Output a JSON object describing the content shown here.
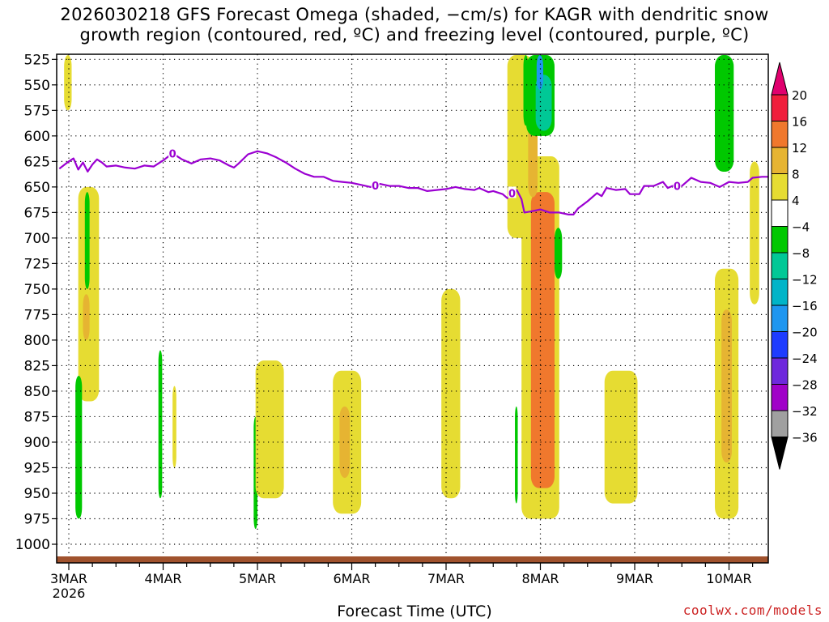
{
  "title": {
    "line1": "2026030218 GFS Forecast Omega (shaded, −cm/s) for KAGR with dendritic snow",
    "line2": "growth region (contoured, red, ºC) and freezing level (contoured, purple, ºC)"
  },
  "credit": "coolwx.com/models",
  "chart_data": {
    "type": "heatmap",
    "xlabel": "Forecast Time (UTC)",
    "ylabel": "",
    "x_ticks": [
      "3MAR",
      "4MAR",
      "5MAR",
      "6MAR",
      "7MAR",
      "8MAR",
      "9MAR",
      "10MAR"
    ],
    "x_year_label": "2026",
    "xlim_days": [
      -0.1,
      7.45
    ],
    "y_ticks": [
      525,
      550,
      575,
      600,
      625,
      650,
      675,
      700,
      725,
      750,
      775,
      800,
      825,
      850,
      875,
      900,
      925,
      950,
      975,
      1000
    ],
    "ylim": [
      1020,
      520
    ],
    "grid": true,
    "colorbar": {
      "labels": [
        "20",
        "16",
        "12",
        "8",
        "4",
        "−4",
        "−8",
        "−12",
        "−16",
        "−20",
        "−24",
        "−28",
        "−32",
        "−36"
      ],
      "colors": [
        "#f01e3c",
        "#f0782d",
        "#e6b432",
        "#e6dc32",
        "#ffffff",
        "#00c800",
        "#00c896",
        "#00b4c8",
        "#1e96f0",
        "#1e3cff",
        "#6e28dc",
        "#a000c8",
        "#a0a0a0"
      ],
      "top_arrow_color": "#e0006e",
      "bottom_arrow_color": "#000000"
    },
    "freezing_level": {
      "label": "0",
      "color": "#9b00d2",
      "label_days": [
        1.1,
        3.25,
        4.7,
        6.45
      ],
      "points": [
        [
          -0.1,
          632
        ],
        [
          0.0,
          625
        ],
        [
          0.05,
          622
        ],
        [
          0.1,
          633
        ],
        [
          0.15,
          626
        ],
        [
          0.2,
          635
        ],
        [
          0.25,
          628
        ],
        [
          0.3,
          623
        ],
        [
          0.35,
          626
        ],
        [
          0.4,
          630
        ],
        [
          0.5,
          629
        ],
        [
          0.6,
          631
        ],
        [
          0.7,
          632
        ],
        [
          0.8,
          629
        ],
        [
          0.9,
          630
        ],
        [
          1.0,
          624
        ],
        [
          1.1,
          617
        ],
        [
          1.2,
          623
        ],
        [
          1.3,
          627
        ],
        [
          1.4,
          623
        ],
        [
          1.5,
          622
        ],
        [
          1.6,
          624
        ],
        [
          1.7,
          629
        ],
        [
          1.75,
          631
        ],
        [
          1.8,
          627
        ],
        [
          1.9,
          618
        ],
        [
          2.0,
          615
        ],
        [
          2.1,
          617
        ],
        [
          2.2,
          621
        ],
        [
          2.3,
          626
        ],
        [
          2.4,
          632
        ],
        [
          2.5,
          637
        ],
        [
          2.6,
          640
        ],
        [
          2.7,
          640
        ],
        [
          2.8,
          644
        ],
        [
          2.9,
          645
        ],
        [
          3.0,
          646
        ],
        [
          3.1,
          648
        ],
        [
          3.2,
          650
        ],
        [
          3.3,
          647
        ],
        [
          3.4,
          649
        ],
        [
          3.5,
          649
        ],
        [
          3.6,
          651
        ],
        [
          3.7,
          651
        ],
        [
          3.8,
          654
        ],
        [
          3.9,
          653
        ],
        [
          4.0,
          652
        ],
        [
          4.1,
          650
        ],
        [
          4.2,
          652
        ],
        [
          4.3,
          653
        ],
        [
          4.35,
          651
        ],
        [
          4.45,
          655
        ],
        [
          4.5,
          654
        ],
        [
          4.6,
          657
        ],
        [
          4.65,
          661
        ],
        [
          4.7,
          656
        ],
        [
          4.75,
          653
        ],
        [
          4.8,
          662
        ],
        [
          4.83,
          675
        ],
        [
          4.9,
          674
        ],
        [
          5.0,
          672
        ],
        [
          5.1,
          675
        ],
        [
          5.2,
          675
        ],
        [
          5.3,
          677
        ],
        [
          5.35,
          677
        ],
        [
          5.4,
          671
        ],
        [
          5.5,
          664
        ],
        [
          5.6,
          656
        ],
        [
          5.65,
          659
        ],
        [
          5.7,
          651
        ],
        [
          5.8,
          653
        ],
        [
          5.9,
          652
        ],
        [
          5.95,
          657
        ],
        [
          6.05,
          657
        ],
        [
          6.1,
          649
        ],
        [
          6.2,
          649
        ],
        [
          6.3,
          645
        ],
        [
          6.35,
          651
        ],
        [
          6.4,
          649
        ],
        [
          6.5,
          649
        ],
        [
          6.6,
          641
        ],
        [
          6.7,
          645
        ],
        [
          6.8,
          646
        ],
        [
          6.9,
          650
        ],
        [
          7.0,
          645
        ],
        [
          7.1,
          646
        ],
        [
          7.2,
          645
        ],
        [
          7.25,
          641
        ],
        [
          7.35,
          640
        ],
        [
          7.45,
          640
        ]
      ]
    },
    "omega_regions": [
      {
        "color": "#e6dc32",
        "days": [
          0.1,
          0.32
        ],
        "p": [
          650,
          860
        ]
      },
      {
        "color": "#e6b432",
        "days": [
          0.15,
          0.22
        ],
        "p": [
          755,
          800
        ]
      },
      {
        "color": "#00c800",
        "days": [
          0.07,
          0.14
        ],
        "p": [
          835,
          975
        ]
      },
      {
        "color": "#00c800",
        "days": [
          0.17,
          0.22
        ],
        "p": [
          655,
          750
        ]
      },
      {
        "color": "#e6dc32",
        "days": [
          -0.05,
          0.03
        ],
        "p": [
          520,
          575
        ]
      },
      {
        "color": "#00c800",
        "days": [
          0.95,
          0.99
        ],
        "p": [
          810,
          955
        ]
      },
      {
        "color": "#e6dc32",
        "days": [
          1.1,
          1.14
        ],
        "p": [
          845,
          925
        ]
      },
      {
        "color": "#00c800",
        "days": [
          1.96,
          2.0
        ],
        "p": [
          875,
          985
        ]
      },
      {
        "color": "#e6dc32",
        "days": [
          1.98,
          2.28
        ],
        "p": [
          820,
          955
        ]
      },
      {
        "color": "#e6dc32",
        "days": [
          2.8,
          3.1
        ],
        "p": [
          830,
          970
        ]
      },
      {
        "color": "#e6b432",
        "days": [
          2.87,
          2.98
        ],
        "p": [
          865,
          935
        ]
      },
      {
        "color": "#e6dc32",
        "days": [
          3.95,
          4.15
        ],
        "p": [
          750,
          955
        ]
      },
      {
        "color": "#e6dc32",
        "days": [
          4.65,
          4.92
        ],
        "p": [
          520,
          700
        ]
      },
      {
        "color": "#e6dc32",
        "days": [
          4.8,
          5.2
        ],
        "p": [
          620,
          975
        ]
      },
      {
        "color": "#f0782d",
        "days": [
          4.9,
          5.15
        ],
        "p": [
          655,
          945
        ]
      },
      {
        "color": "#e6b432",
        "days": [
          4.87,
          4.97
        ],
        "p": [
          580,
          660
        ]
      },
      {
        "color": "#00c800",
        "days": [
          4.82,
          4.87
        ],
        "p": [
          520,
          590
        ]
      },
      {
        "color": "#00c800",
        "days": [
          4.85,
          5.15
        ],
        "p": [
          520,
          600
        ]
      },
      {
        "color": "#00c896",
        "days": [
          4.95,
          5.12
        ],
        "p": [
          540,
          595
        ]
      },
      {
        "color": "#1e96f0",
        "days": [
          4.96,
          5.03
        ],
        "p": [
          520,
          555
        ]
      },
      {
        "color": "#00c800",
        "days": [
          5.15,
          5.23
        ],
        "p": [
          690,
          740
        ]
      },
      {
        "color": "#00c800",
        "days": [
          4.73,
          4.76
        ],
        "p": [
          865,
          960
        ]
      },
      {
        "color": "#e6dc32",
        "days": [
          5.68,
          6.03
        ],
        "p": [
          830,
          960
        ]
      },
      {
        "color": "#e6dc32",
        "days": [
          6.85,
          7.1
        ],
        "p": [
          730,
          975
        ]
      },
      {
        "color": "#e6b432",
        "days": [
          6.92,
          7.03
        ],
        "p": [
          770,
          920
        ]
      },
      {
        "color": "#00c800",
        "days": [
          6.85,
          7.05
        ],
        "p": [
          520,
          635
        ]
      },
      {
        "color": "#e6dc32",
        "days": [
          7.22,
          7.32
        ],
        "p": [
          625,
          765
        ]
      }
    ]
  }
}
